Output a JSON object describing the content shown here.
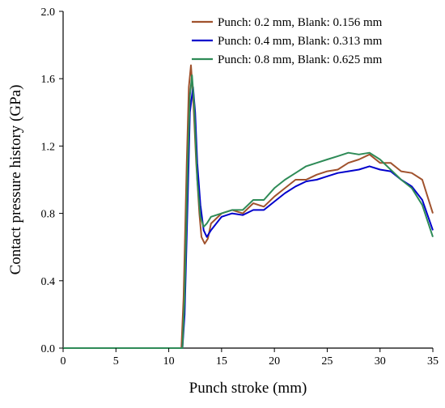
{
  "chart_data": {
    "type": "line",
    "title": "",
    "xlabel": "Punch stroke (mm)",
    "ylabel": "Contact pressure history (GPa)",
    "xlim": [
      0,
      35
    ],
    "ylim": [
      0,
      2.0
    ],
    "xticks": [
      0,
      5,
      10,
      15,
      20,
      25,
      30,
      35
    ],
    "xtick_labels": [
      "0",
      "5",
      "10",
      "15",
      "20",
      "25",
      "30",
      "35"
    ],
    "yticks": [
      0,
      0.4,
      0.8,
      1.2,
      1.6,
      2.0
    ],
    "ytick_labels": [
      "0.0",
      "0.4",
      "0.8",
      "1.2",
      "1.6",
      "2.0"
    ],
    "grid": false,
    "legend_position": "top-right",
    "series": [
      {
        "name": "Punch: 0.2 mm, Blank: 0.156 mm",
        "color": "#a0522d",
        "x": [
          0,
          11.2,
          11.4,
          11.7,
          11.9,
          12.1,
          12.3,
          12.6,
          12.9,
          13.1,
          13.4,
          13.7,
          14,
          15,
          16,
          17,
          18,
          19,
          20,
          21,
          22,
          23,
          24,
          25,
          26,
          27,
          28,
          29,
          30,
          31,
          32,
          33,
          34,
          35
        ],
        "y": [
          0,
          0,
          0.3,
          1.1,
          1.55,
          1.68,
          1.5,
          1.1,
          0.8,
          0.66,
          0.62,
          0.65,
          0.74,
          0.8,
          0.82,
          0.8,
          0.86,
          0.84,
          0.9,
          0.95,
          1.0,
          1.0,
          1.03,
          1.05,
          1.06,
          1.1,
          1.12,
          1.15,
          1.1,
          1.1,
          1.05,
          1.04,
          1.0,
          0.8
        ]
      },
      {
        "name": "Punch: 0.4 mm, Blank: 0.313 mm",
        "color": "#0000cc",
        "x": [
          0,
          11.3,
          11.5,
          11.8,
          12.0,
          12.3,
          12.5,
          12.7,
          13.0,
          13.3,
          13.6,
          14,
          15,
          16,
          17,
          18,
          19,
          20,
          21,
          22,
          23,
          24,
          25,
          26,
          27,
          28,
          29,
          30,
          31,
          32,
          33,
          34,
          35
        ],
        "y": [
          0,
          0,
          0.2,
          0.9,
          1.4,
          1.55,
          1.4,
          1.1,
          0.85,
          0.7,
          0.66,
          0.7,
          0.78,
          0.8,
          0.79,
          0.82,
          0.82,
          0.87,
          0.92,
          0.96,
          0.99,
          1.0,
          1.02,
          1.04,
          1.05,
          1.06,
          1.08,
          1.06,
          1.05,
          1.0,
          0.96,
          0.88,
          0.7
        ]
      },
      {
        "name": "Punch: 0.8 mm, Blank: 0.625 mm",
        "color": "#2e8b57",
        "x": [
          0,
          11.3,
          11.5,
          11.8,
          12.0,
          12.2,
          12.4,
          12.7,
          13.0,
          13.3,
          13.6,
          14,
          15,
          16,
          17,
          18,
          19,
          20,
          21,
          22,
          23,
          24,
          25,
          26,
          27,
          28,
          29,
          30,
          31,
          32,
          33,
          34,
          35
        ],
        "y": [
          0,
          0,
          0.3,
          1.1,
          1.5,
          1.62,
          1.45,
          1.0,
          0.78,
          0.72,
          0.74,
          0.78,
          0.8,
          0.82,
          0.82,
          0.88,
          0.88,
          0.95,
          1.0,
          1.04,
          1.08,
          1.1,
          1.12,
          1.14,
          1.16,
          1.15,
          1.16,
          1.12,
          1.06,
          1.0,
          0.95,
          0.85,
          0.66
        ]
      }
    ]
  }
}
